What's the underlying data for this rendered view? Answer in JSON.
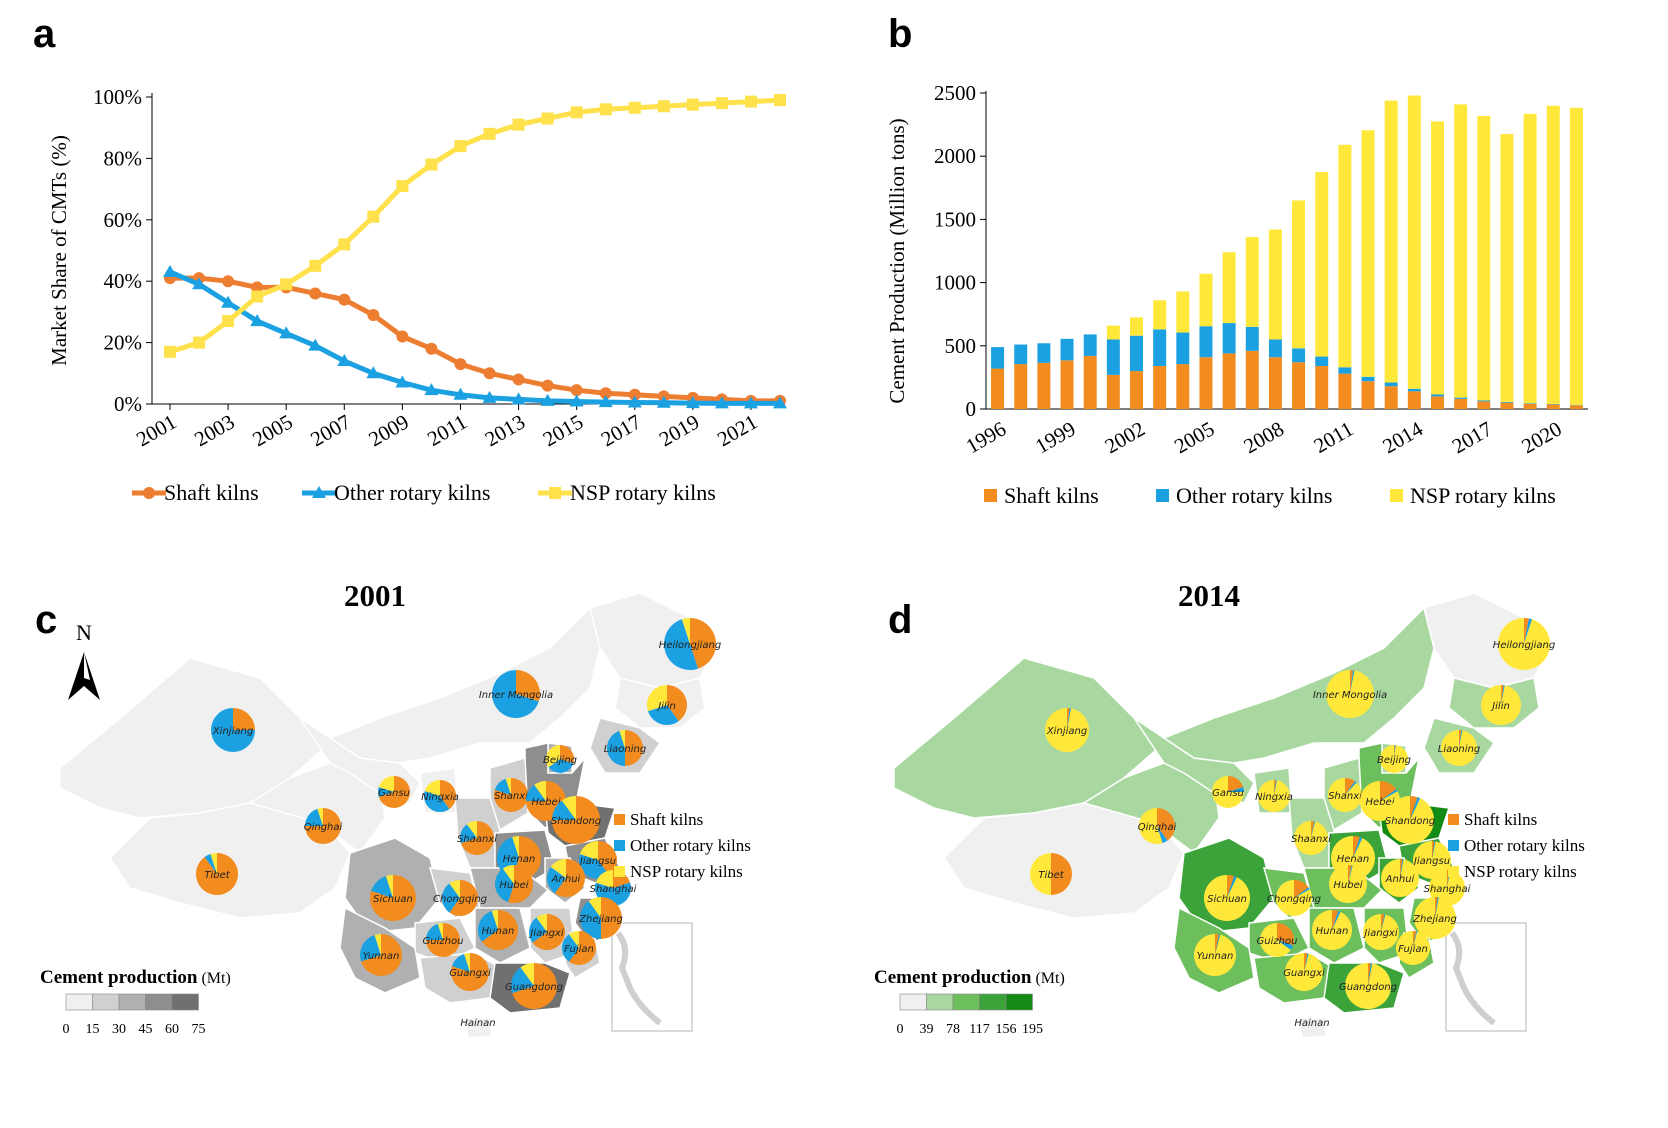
{
  "panels": {
    "a": "a",
    "b": "b",
    "c": "c",
    "d": "d"
  },
  "chart_data": [
    {
      "type": "line",
      "panel": "a",
      "ylabel": "Market Share of CMTs  (%)",
      "xlabel": "",
      "ylim": [
        0,
        100
      ],
      "yticks": [
        "0%",
        "20%",
        "40%",
        "60%",
        "80%",
        "100%"
      ],
      "ytick_values": [
        0,
        20,
        40,
        60,
        80,
        100
      ],
      "xlim": [
        2001,
        2022
      ],
      "xticks": [
        "2001",
        "2003",
        "2005",
        "2007",
        "2009",
        "2011",
        "2013",
        "2015",
        "2017",
        "2019",
        "2021"
      ],
      "x": [
        2001,
        2002,
        2003,
        2004,
        2005,
        2006,
        2007,
        2008,
        2009,
        2010,
        2011,
        2012,
        2013,
        2014,
        2015,
        2016,
        2017,
        2018,
        2019,
        2020,
        2021,
        2022
      ],
      "legend_position": "bottom",
      "series": [
        {
          "name": "Shaft kilns",
          "color": "#ED7D31",
          "marker": "circle",
          "values": [
            41,
            41,
            40,
            38,
            38,
            36,
            34,
            29,
            22,
            18,
            13,
            10,
            8,
            6,
            4.5,
            3.5,
            3,
            2.5,
            2,
            1.5,
            1,
            1
          ]
        },
        {
          "name": "Other rotary kilns",
          "color": "#1BA1E2",
          "marker": "triangle",
          "values": [
            43,
            39,
            33,
            27,
            23,
            19,
            14,
            10,
            7,
            4.5,
            3,
            2,
            1.5,
            1,
            0.8,
            0.6,
            0.5,
            0.4,
            0.3,
            0.2,
            0.2,
            0.2
          ]
        },
        {
          "name": "NSP rotary kilns",
          "color": "#FFE14B",
          "marker": "square",
          "values": [
            17,
            20,
            27,
            35,
            39,
            45,
            52,
            61,
            71,
            78,
            84,
            88,
            91,
            93,
            95,
            96,
            96.5,
            97,
            97.5,
            98,
            98.5,
            99
          ]
        }
      ]
    },
    {
      "type": "bar",
      "panel": "b",
      "stacked": true,
      "ylabel": "Cement Production (Million tons)",
      "xlabel": "",
      "ylim": [
        0,
        2500
      ],
      "yticks": [
        "0",
        "500",
        "1000",
        "1500",
        "2000",
        "2500"
      ],
      "ytick_values": [
        0,
        500,
        1000,
        1500,
        2000,
        2500
      ],
      "categories": [
        "1996",
        "1997",
        "1998",
        "1999",
        "2000",
        "2001",
        "2002",
        "2003",
        "2004",
        "2005",
        "2006",
        "2007",
        "2008",
        "2009",
        "2010",
        "2011",
        "2012",
        "2013",
        "2014",
        "2015",
        "2016",
        "2017",
        "2018",
        "2019",
        "2020",
        "2021"
      ],
      "xticks": [
        "1996",
        "1999",
        "2002",
        "2005",
        "2008",
        "2011",
        "2014",
        "2017",
        "2020"
      ],
      "legend_position": "bottom",
      "series": [
        {
          "name": "Shaft kilns",
          "color": "#F28C1E",
          "values": [
            320,
            355,
            365,
            385,
            420,
            270,
            300,
            340,
            355,
            410,
            440,
            460,
            410,
            370,
            340,
            280,
            220,
            180,
            140,
            100,
            80,
            60,
            50,
            40,
            35,
            30
          ]
        },
        {
          "name": "Other rotary kilns",
          "color": "#1BA1E2",
          "values": [
            170,
            155,
            155,
            170,
            170,
            280,
            280,
            290,
            250,
            245,
            240,
            190,
            140,
            110,
            75,
            50,
            35,
            30,
            20,
            15,
            10,
            8,
            6,
            5,
            4,
            3
          ]
        },
        {
          "name": "NSP rotary kilns",
          "color": "#FFE83A",
          "values": [
            0,
            0,
            0,
            0,
            0,
            110,
            145,
            230,
            325,
            415,
            560,
            710,
            870,
            1170,
            1460,
            1760,
            1950,
            2230,
            2320,
            2160,
            2320,
            2250,
            2120,
            2290,
            2360,
            2350
          ]
        }
      ]
    }
  ],
  "maps": [
    {
      "panel": "c",
      "title": "2001",
      "north_label": "N",
      "legend_title": "Cement production",
      "legend_unit": "(Mt)",
      "legend_ticks": [
        "0",
        "15",
        "30",
        "45",
        "60",
        "75"
      ],
      "legend_colors": [
        "#f0f0f0",
        "#d0d0d0",
        "#b0b0b0",
        "#8e8e8e",
        "#707070"
      ],
      "pie_legend": [
        "Shaft kilns",
        "Other rotary kilns",
        "NSP rotary kilns"
      ],
      "pie_colors": [
        "#F28C1E",
        "#1BA1E2",
        "#FFE83A"
      ],
      "provinces": [
        {
          "name": "Heilongjiang",
          "pie": [
            45,
            50,
            5
          ]
        },
        {
          "name": "Inner Mongolia",
          "pie": [
            30,
            70,
            0
          ]
        },
        {
          "name": "Jilin",
          "pie": [
            40,
            30,
            30
          ]
        },
        {
          "name": "Xinjiang",
          "pie": [
            25,
            75,
            0
          ]
        },
        {
          "name": "Liaoning",
          "pie": [
            50,
            45,
            5
          ]
        },
        {
          "name": "Beijing",
          "pie": [
            30,
            35,
            35
          ]
        },
        {
          "name": "Gansu",
          "pie": [
            70,
            10,
            20
          ]
        },
        {
          "name": "Ningxia",
          "pie": [
            40,
            40,
            20
          ]
        },
        {
          "name": "Shanxi",
          "pie": [
            80,
            15,
            5
          ]
        },
        {
          "name": "Hebei",
          "pie": [
            75,
            15,
            10
          ]
        },
        {
          "name": "Shandong",
          "pie": [
            75,
            15,
            10
          ]
        },
        {
          "name": "Qinghai",
          "pie": [
            75,
            20,
            5
          ]
        },
        {
          "name": "Shaanxi",
          "pie": [
            70,
            20,
            10
          ]
        },
        {
          "name": "Henan",
          "pie": [
            55,
            40,
            5
          ]
        },
        {
          "name": "Jiangsu",
          "pie": [
            40,
            40,
            20
          ]
        },
        {
          "name": "Tibet",
          "pie": [
            90,
            5,
            5
          ]
        },
        {
          "name": "Anhui",
          "pie": [
            60,
            25,
            15
          ]
        },
        {
          "name": "Shanghai",
          "pie": [
            20,
            60,
            20
          ]
        },
        {
          "name": "Sichuan",
          "pie": [
            80,
            15,
            5
          ]
        },
        {
          "name": "Chongqing",
          "pie": [
            60,
            30,
            10
          ]
        },
        {
          "name": "Hubei",
          "pie": [
            55,
            35,
            10
          ]
        },
        {
          "name": "Zhejiang",
          "pie": [
            50,
            40,
            10
          ]
        },
        {
          "name": "Guizhou",
          "pie": [
            75,
            20,
            5
          ]
        },
        {
          "name": "Hunan",
          "pie": [
            65,
            30,
            5
          ]
        },
        {
          "name": "Jiangxi",
          "pie": [
            65,
            25,
            10
          ]
        },
        {
          "name": "Fujian",
          "pie": [
            60,
            30,
            10
          ]
        },
        {
          "name": "Yunnan",
          "pie": [
            70,
            25,
            5
          ]
        },
        {
          "name": "Guangxi",
          "pie": [
            80,
            15,
            5
          ]
        },
        {
          "name": "Guangdong",
          "pie": [
            70,
            20,
            10
          ]
        },
        {
          "name": "Hainan",
          "pie": null
        }
      ]
    },
    {
      "panel": "d",
      "title": "2014",
      "legend_title": "Cement production",
      "legend_unit": "(Mt)",
      "legend_ticks": [
        "0",
        "39",
        "78",
        "117",
        "156",
        "195"
      ],
      "legend_colors": [
        "#f0f0f0",
        "#a8d8a0",
        "#6cbf5c",
        "#3ca33a",
        "#138a14"
      ],
      "pie_legend": [
        "Shaft kilns",
        "Other rotary kilns",
        "NSP rotary kilns"
      ],
      "pie_colors": [
        "#F28C1E",
        "#1BA1E2",
        "#FFE83A"
      ],
      "provinces": [
        {
          "name": "Heilongjiang",
          "pie": [
            3,
            2,
            95
          ]
        },
        {
          "name": "Inner Mongolia",
          "pie": [
            2,
            1,
            97
          ]
        },
        {
          "name": "Jilin",
          "pie": [
            2,
            1,
            97
          ]
        },
        {
          "name": "Xinjiang",
          "pie": [
            2,
            1,
            97
          ]
        },
        {
          "name": "Liaoning",
          "pie": [
            2,
            1,
            97
          ]
        },
        {
          "name": "Beijing",
          "pie": [
            1,
            1,
            98
          ]
        },
        {
          "name": "Gansu",
          "pie": [
            20,
            5,
            75
          ]
        },
        {
          "name": "Ningxia",
          "pie": [
            2,
            1,
            97
          ]
        },
        {
          "name": "Shanxi",
          "pie": [
            10,
            2,
            88
          ]
        },
        {
          "name": "Hebei",
          "pie": [
            15,
            2,
            83
          ]
        },
        {
          "name": "Shandong",
          "pie": [
            5,
            2,
            93
          ]
        },
        {
          "name": "Qinghai",
          "pie": [
            40,
            5,
            55
          ]
        },
        {
          "name": "Shaanxi",
          "pie": [
            3,
            1,
            96
          ]
        },
        {
          "name": "Henan",
          "pie": [
            5,
            2,
            93
          ]
        },
        {
          "name": "Jiangsu",
          "pie": [
            2,
            1,
            97
          ]
        },
        {
          "name": "Tibet",
          "pie": [
            50,
            0,
            50
          ]
        },
        {
          "name": "Anhui",
          "pie": [
            2,
            1,
            97
          ]
        },
        {
          "name": "Shanghai",
          "pie": [
            2,
            1,
            97
          ]
        },
        {
          "name": "Sichuan",
          "pie": [
            5,
            2,
            93
          ]
        },
        {
          "name": "Chongqing",
          "pie": [
            15,
            2,
            83
          ]
        },
        {
          "name": "Hubei",
          "pie": [
            3,
            1,
            96
          ]
        },
        {
          "name": "Zhejiang",
          "pie": [
            2,
            1,
            97
          ]
        },
        {
          "name": "Guizhou",
          "pie": [
            30,
            5,
            65
          ]
        },
        {
          "name": "Hunan",
          "pie": [
            5,
            2,
            93
          ]
        },
        {
          "name": "Jiangxi",
          "pie": [
            3,
            1,
            96
          ]
        },
        {
          "name": "Fujian",
          "pie": [
            3,
            1,
            96
          ]
        },
        {
          "name": "Yunnan",
          "pie": [
            3,
            1,
            96
          ]
        },
        {
          "name": "Guangxi",
          "pie": [
            3,
            1,
            96
          ]
        },
        {
          "name": "Guangdong",
          "pie": [
            2,
            1,
            97
          ]
        },
        {
          "name": "Hainan",
          "pie": null
        }
      ]
    }
  ]
}
